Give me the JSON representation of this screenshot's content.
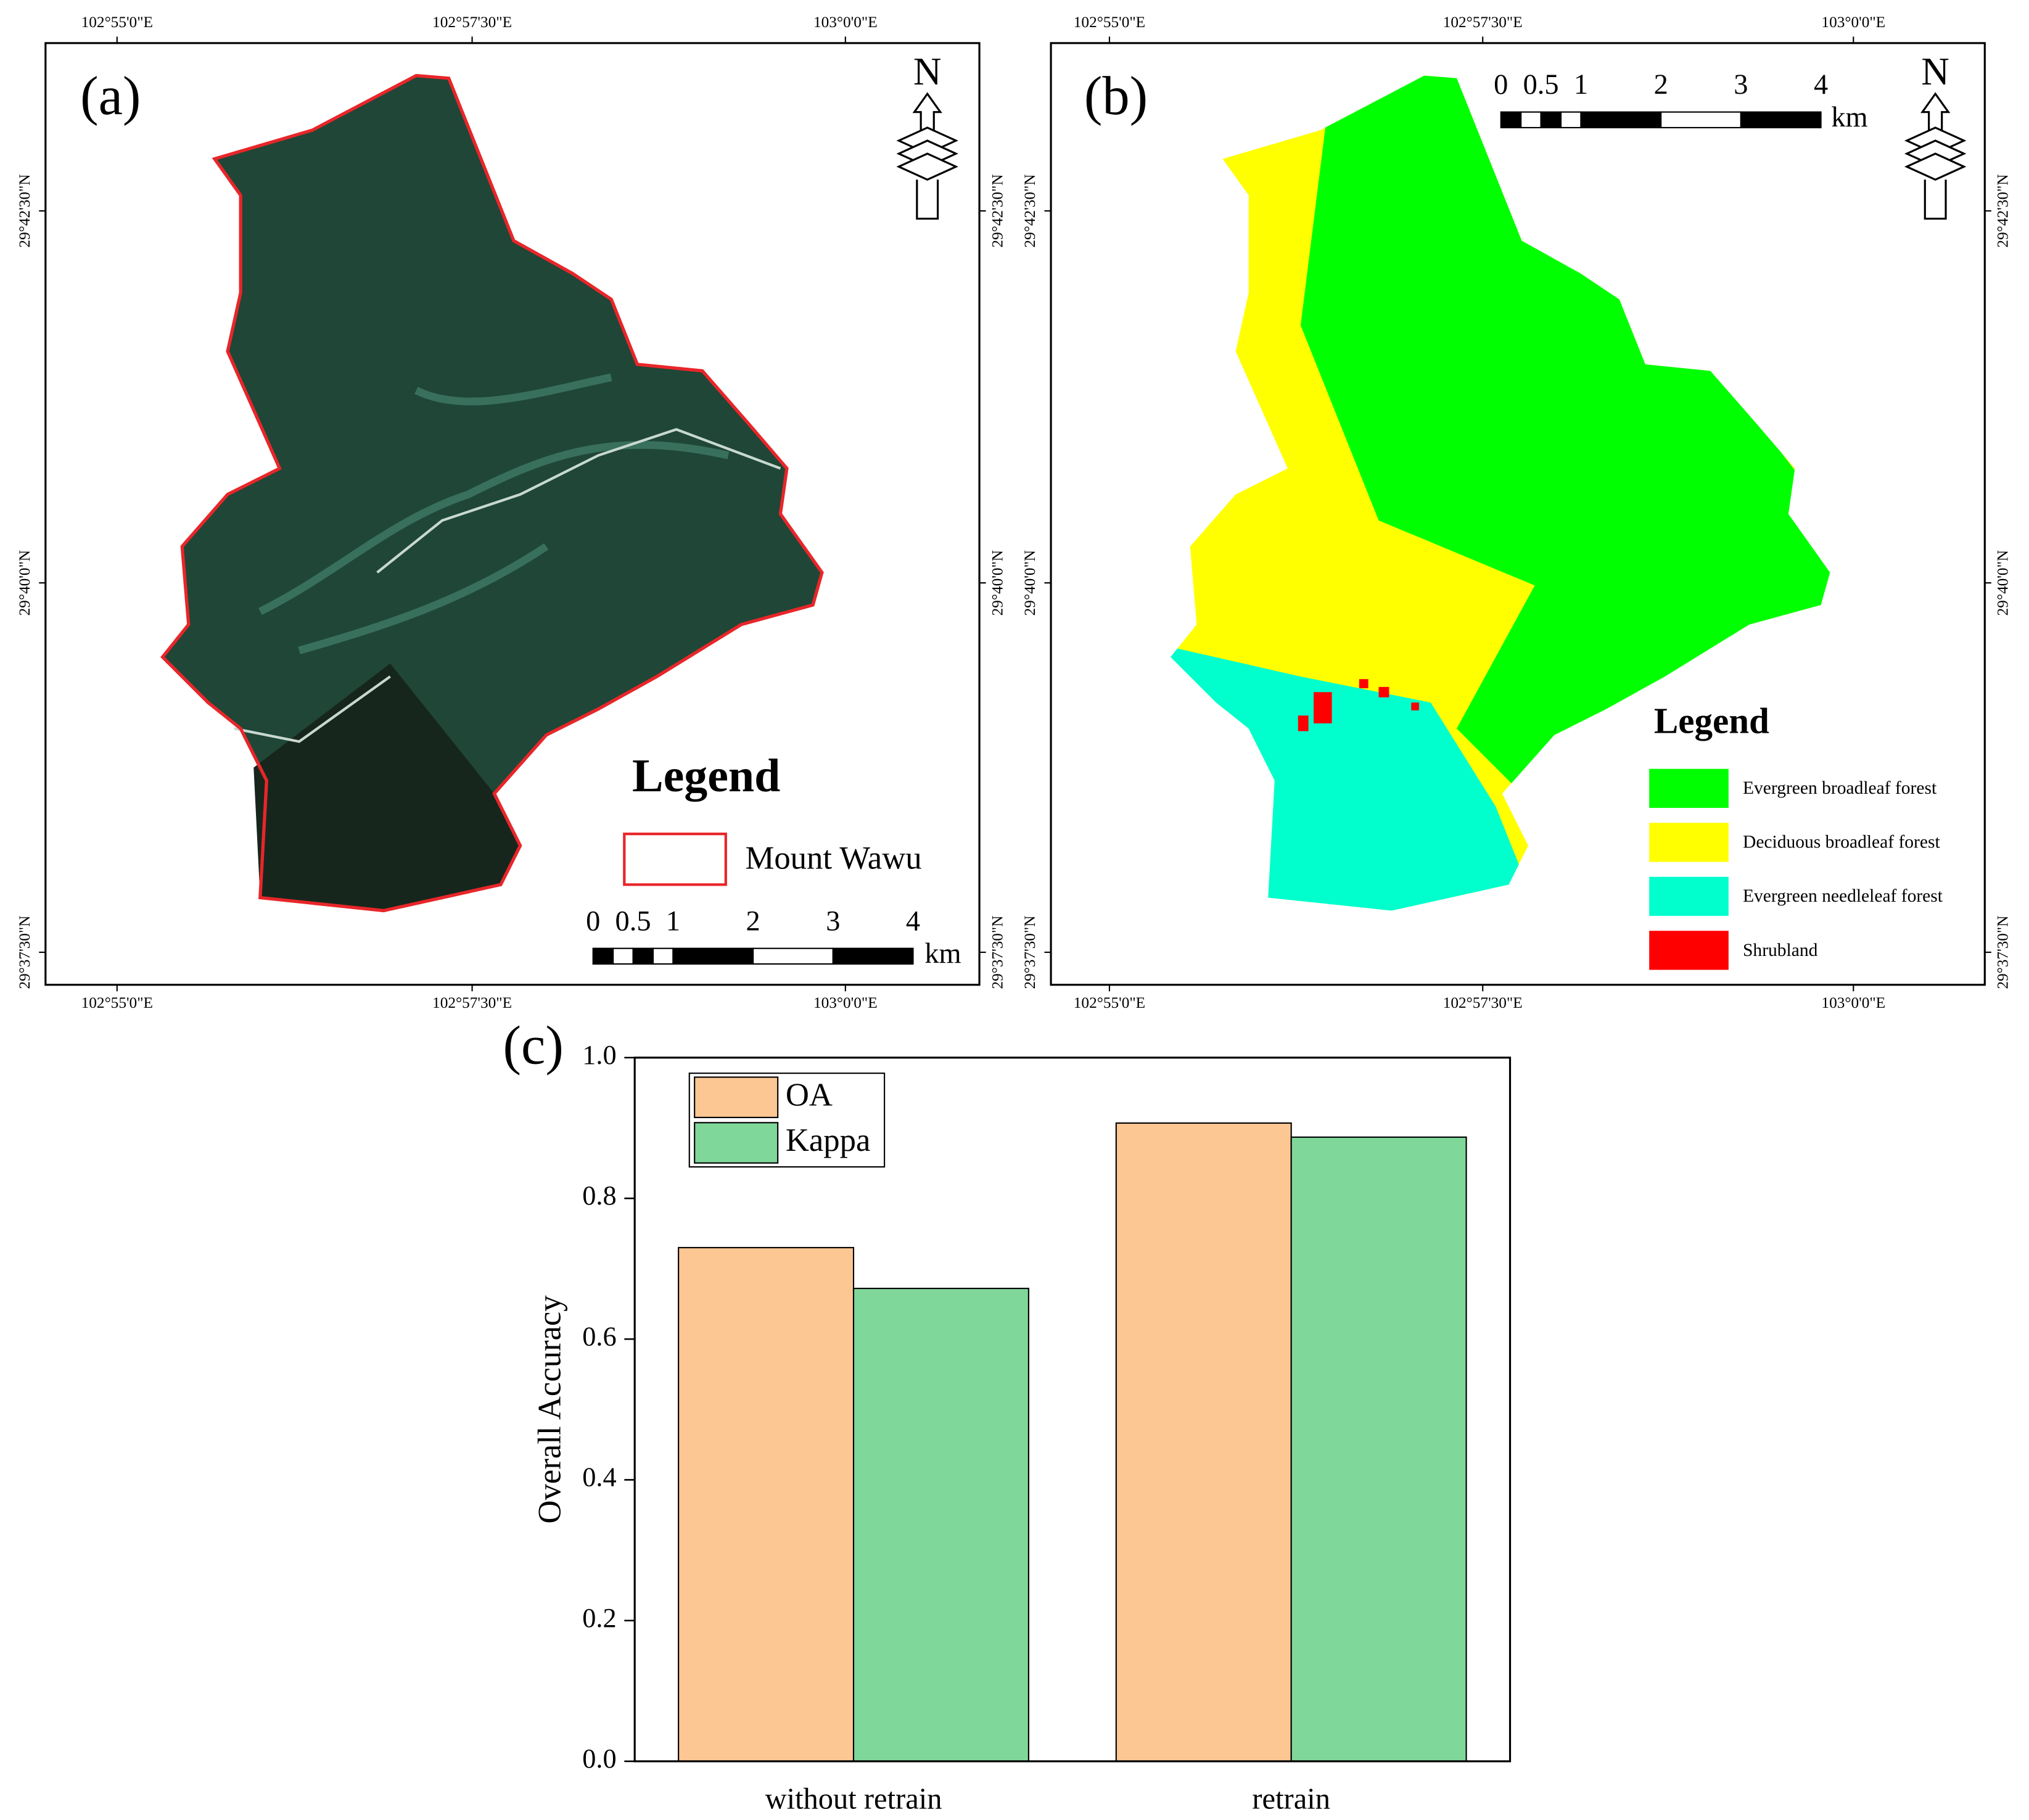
{
  "map_a": {
    "panel_label": "(a)",
    "lon_ticks": [
      "102°55'0\"E",
      "102°57'30\"E",
      "103°0'0\"E"
    ],
    "lat_ticks": [
      "29°42'30\"N",
      "29°40'0\"N",
      "29°37'30\"N"
    ],
    "north": "N",
    "legend_title": "Legend",
    "legend_items": [
      "Mount Wawu"
    ],
    "scale_labels": [
      "0",
      "0.5",
      "1",
      "2",
      "3",
      "4"
    ],
    "scale_unit": "km"
  },
  "map_b": {
    "panel_label": "(b)",
    "lon_ticks": [
      "102°55'0\"E",
      "102°57'30\"E",
      "103°0'0\"E"
    ],
    "lat_ticks": [
      "29°42'30\"N",
      "29°40'0\"N",
      "29°37'30\"N"
    ],
    "north": "N",
    "legend_title": "Legend",
    "legend_items": [
      {
        "name": "Evergreen broadleaf forest",
        "color": "#00ff00"
      },
      {
        "name": "Deciduous broadleaf forest",
        "color": "#ffff00"
      },
      {
        "name": "Evergreen needleleaf forest",
        "color": "#00ffcc"
      },
      {
        "name": "Shrubland",
        "color": "#ff0000"
      }
    ],
    "scale_labels": [
      "0",
      "0.5",
      "1",
      "2",
      "3",
      "4"
    ],
    "scale_unit": "km"
  },
  "chart_data": {
    "type": "bar",
    "panel_label": "(c)",
    "y_label": "Overall Accuracy",
    "categories": [
      "without retrain",
      "retrain"
    ],
    "series": [
      {
        "name": "OA",
        "color": "#fdc793",
        "values": [
          0.73,
          0.907
        ]
      },
      {
        "name": "Kappa",
        "color": "#80d79a",
        "values": [
          0.672,
          0.887
        ]
      }
    ],
    "ylim": [
      0,
      1.0
    ],
    "yticks": [
      {
        "value": 0,
        "label": "0.0"
      },
      0.2,
      0.4,
      0.6,
      0.8,
      {
        "value": 1.0,
        "label": "1.0"
      }
    ]
  }
}
